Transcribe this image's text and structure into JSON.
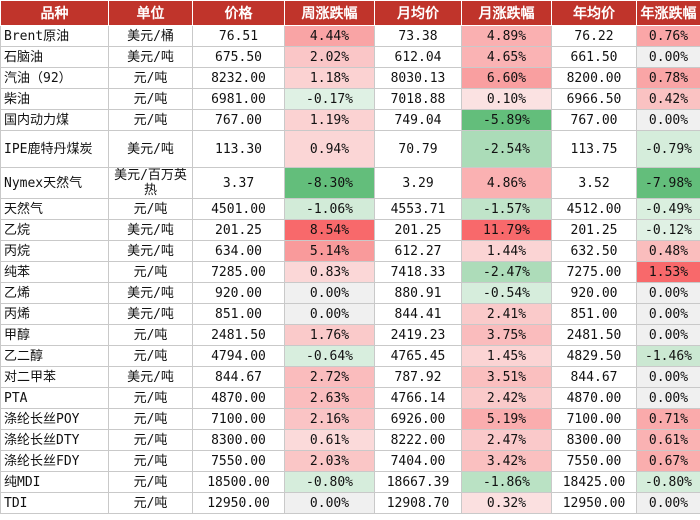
{
  "headers": [
    "品种",
    "单位",
    "价格",
    "周涨跌幅",
    "月均价",
    "月涨跌幅",
    "年均价",
    "年涨跌幅"
  ],
  "rows": [
    [
      "Brent原油",
      "美元/桶",
      "76.51",
      "4.44%",
      "73.38",
      "4.89%",
      "76.22",
      "0.76%"
    ],
    [
      "石脑油",
      "美元/吨",
      "675.50",
      "2.02%",
      "612.04",
      "4.65%",
      "661.50",
      "0.00%"
    ],
    [
      "汽油（92）",
      "元/吨",
      "8232.00",
      "1.18%",
      "8030.13",
      "6.60%",
      "8200.00",
      "0.78%"
    ],
    [
      "柴油",
      "元/吨",
      "6981.00",
      "-0.17%",
      "7018.88",
      "0.10%",
      "6966.50",
      "0.42%"
    ],
    [
      "国内动力煤",
      "元/吨",
      "767.00",
      "1.19%",
      "749.04",
      "-5.89%",
      "767.00",
      "0.00%"
    ],
    [
      "IPE鹿特丹煤炭",
      "美元/吨",
      "113.30",
      "0.94%",
      "70.79",
      "-2.54%",
      "113.75",
      "-0.79%"
    ],
    [
      "Nymex天然气",
      "美元/百万英热",
      "3.37",
      "-8.30%",
      "3.29",
      "4.86%",
      "3.52",
      "-7.98%"
    ],
    [
      "天然气",
      "元/吨",
      "4501.00",
      "-1.06%",
      "4553.71",
      "-1.57%",
      "4512.00",
      "-0.49%"
    ],
    [
      "乙烷",
      "美元/吨",
      "201.25",
      "8.54%",
      "201.25",
      "11.79%",
      "201.25",
      "-0.12%"
    ],
    [
      "丙烷",
      "美元/吨",
      "634.00",
      "5.14%",
      "612.27",
      "1.44%",
      "632.50",
      "0.48%"
    ],
    [
      "纯苯",
      "元/吨",
      "7285.00",
      "0.83%",
      "7418.33",
      "-2.47%",
      "7275.00",
      "1.53%"
    ],
    [
      "乙烯",
      "美元/吨",
      "920.00",
      "0.00%",
      "880.91",
      "-0.54%",
      "920.00",
      "0.00%"
    ],
    [
      "丙烯",
      "美元/吨",
      "851.00",
      "0.00%",
      "844.41",
      "2.41%",
      "851.00",
      "0.00%"
    ],
    [
      "甲醇",
      "元/吨",
      "2481.50",
      "1.76%",
      "2419.23",
      "3.75%",
      "2481.50",
      "0.00%"
    ],
    [
      "乙二醇",
      "元/吨",
      "4794.00",
      "-0.64%",
      "4765.45",
      "1.45%",
      "4829.50",
      "-1.46%"
    ],
    [
      "对二甲苯",
      "美元/吨",
      "844.67",
      "2.72%",
      "787.92",
      "3.51%",
      "844.67",
      "0.00%"
    ],
    [
      "PTA",
      "元/吨",
      "4870.00",
      "2.63%",
      "4766.14",
      "2.42%",
      "4870.00",
      "0.00%"
    ],
    [
      "涤纶长丝POY",
      "元/吨",
      "7100.00",
      "2.16%",
      "6926.00",
      "5.19%",
      "7100.00",
      "0.71%"
    ],
    [
      "涤纶长丝DTY",
      "元/吨",
      "8300.00",
      "0.61%",
      "8222.00",
      "2.47%",
      "8300.00",
      "0.61%"
    ],
    [
      "涤纶长丝FDY",
      "元/吨",
      "7550.00",
      "2.03%",
      "7404.00",
      "3.42%",
      "7550.00",
      "0.67%"
    ],
    [
      "纯MDI",
      "元/吨",
      "18500.00",
      "-0.80%",
      "18667.39",
      "-1.86%",
      "18425.00",
      "-0.80%"
    ],
    [
      "TDI",
      "元/吨",
      "12950.00",
      "0.00%",
      "12908.70",
      "0.32%",
      "12950.00",
      "0.00%"
    ]
  ],
  "colors": {
    "header_bg": "#c0342b",
    "header_text": "#ffffff",
    "up": "#f8696b",
    "down": "#63be7b",
    "neutral": "#f0f0f0"
  }
}
